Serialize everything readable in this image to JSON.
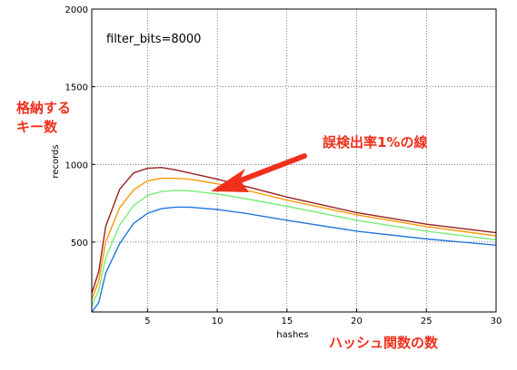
{
  "chart_data": {
    "type": "line",
    "annotation_text": "filter_bits=8000",
    "xlabel": "hashes",
    "ylabel": "records",
    "xlim": [
      1,
      30
    ],
    "ylim": [
      50,
      2000
    ],
    "xticks": [
      5,
      10,
      15,
      20,
      25,
      30
    ],
    "yticks": [
      500,
      1000,
      1500,
      2000
    ],
    "grid": true,
    "x": [
      1,
      1.5,
      2,
      3,
      4,
      5,
      6,
      7,
      8,
      10,
      12,
      15,
      20,
      25,
      30
    ],
    "series": [
      {
        "color": "#2277dd",
        "values": [
          50,
          110,
          300,
          490,
          620,
          685,
          715,
          725,
          725,
          710,
          685,
          640,
          570,
          520,
          480
        ]
      },
      {
        "color": "#77ee77",
        "values": [
          90,
          190,
          400,
          610,
          735,
          800,
          825,
          833,
          830,
          810,
          780,
          730,
          640,
          570,
          515
        ]
      },
      {
        "color": "#ff9900",
        "values": [
          130,
          250,
          500,
          720,
          835,
          895,
          910,
          910,
          905,
          875,
          835,
          770,
          675,
          600,
          540
        ]
      },
      {
        "color": "#991f1f",
        "values": [
          170,
          310,
          600,
          840,
          945,
          975,
          980,
          965,
          945,
          905,
          860,
          790,
          690,
          615,
          560
        ]
      }
    ],
    "colors": {
      "arrow": "#f0301c",
      "note_text": "#f0301c"
    },
    "notes": {
      "keys_line1": "格納する",
      "keys_line2": "キー数",
      "fp_rate": "誤検出率1%の線",
      "hash_count": "ハッシュ関数の数"
    }
  }
}
